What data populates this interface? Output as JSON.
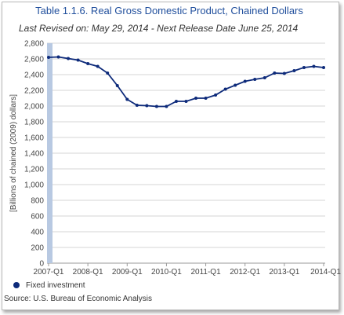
{
  "chart_data": {
    "type": "line",
    "title": "Table 1.1.6. Real Gross Domestic Product, Chained Dollars",
    "subtitle": "Last Revised on: May 29, 2014 - Next Release Date June 25, 2014",
    "ylabel": "[Billions of chained (2009) dollars]",
    "xlabel": "",
    "ylim": [
      0,
      2800
    ],
    "yticks": [
      "0",
      "200",
      "400",
      "600",
      "800",
      "1,000",
      "1,200",
      "1,400",
      "1,600",
      "1,800",
      "2,000",
      "2,200",
      "2,400",
      "2,600",
      "2,800"
    ],
    "xticks": [
      "2007-Q1",
      "2008-Q1",
      "2009-Q1",
      "2010-Q1",
      "2011-Q1",
      "2012-Q1",
      "2013-Q1",
      "2014-Q1"
    ],
    "x": [
      "2007-Q1",
      "2007-Q2",
      "2007-Q3",
      "2007-Q4",
      "2008-Q1",
      "2008-Q2",
      "2008-Q3",
      "2008-Q4",
      "2009-Q1",
      "2009-Q2",
      "2009-Q3",
      "2009-Q4",
      "2010-Q1",
      "2010-Q2",
      "2010-Q3",
      "2010-Q4",
      "2011-Q1",
      "2011-Q2",
      "2011-Q3",
      "2011-Q4",
      "2012-Q1",
      "2012-Q2",
      "2012-Q3",
      "2012-Q4",
      "2013-Q1",
      "2013-Q2",
      "2013-Q3",
      "2013-Q4",
      "2014-Q1"
    ],
    "series": [
      {
        "name": "Fixed investment",
        "color": "#0d2a7a",
        "values": [
          2620,
          2625,
          2605,
          2585,
          2540,
          2505,
          2420,
          2260,
          2085,
          2010,
          2005,
          1995,
          1995,
          2060,
          2060,
          2100,
          2100,
          2140,
          2215,
          2265,
          2315,
          2340,
          2360,
          2420,
          2415,
          2450,
          2490,
          2505,
          2490
        ]
      }
    ],
    "grid": "horizontal",
    "legend_position": "bottom-left",
    "source": "Source: U.S. Bureau of Economic Analysis"
  }
}
